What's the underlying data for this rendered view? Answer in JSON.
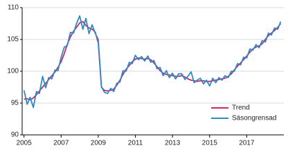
{
  "chart_data": {
    "type": "line",
    "x": [
      2005,
      2005.17,
      2005.33,
      2005.5,
      2005.67,
      2005.83,
      2006,
      2006.17,
      2006.33,
      2006.5,
      2006.67,
      2006.83,
      2007,
      2007.17,
      2007.33,
      2007.5,
      2007.67,
      2007.83,
      2008,
      2008.17,
      2008.33,
      2008.5,
      2008.67,
      2008.83,
      2009,
      2009.17,
      2009.33,
      2009.5,
      2009.67,
      2009.83,
      2010,
      2010.17,
      2010.33,
      2010.5,
      2010.67,
      2010.83,
      2011,
      2011.17,
      2011.33,
      2011.5,
      2011.67,
      2011.83,
      2012,
      2012.17,
      2012.33,
      2012.5,
      2012.67,
      2012.83,
      2013,
      2013.17,
      2013.33,
      2013.5,
      2013.67,
      2013.83,
      2014,
      2014.17,
      2014.33,
      2014.5,
      2014.67,
      2014.83,
      2015,
      2015.17,
      2015.33,
      2015.5,
      2015.67,
      2015.83,
      2016,
      2016.17,
      2016.33,
      2016.5,
      2016.67,
      2016.83,
      2017,
      2017.17,
      2017.33,
      2017.5,
      2017.67,
      2017.83,
      2018,
      2018.17,
      2018.33,
      2018.5,
      2018.67,
      2018.83
    ],
    "series": [
      {
        "name": "Trend",
        "color": "#d4206b",
        "values": [
          95.6,
          95.7,
          95.5,
          95.8,
          96.3,
          96.9,
          97.5,
          98.1,
          98.7,
          99.3,
          99.9,
          100.6,
          101.5,
          102.8,
          104.2,
          105.4,
          106.3,
          106.9,
          107.6,
          107.8,
          107.2,
          106.8,
          106.6,
          106.2,
          104.5,
          97.5,
          97.0,
          96.9,
          97.0,
          97.2,
          97.8,
          98.6,
          99.5,
          100.3,
          100.9,
          101.5,
          101.9,
          102.1,
          102.0,
          101.9,
          102.0,
          101.8,
          101.3,
          100.7,
          100.1,
          99.7,
          99.5,
          99.4,
          99.3,
          99.2,
          99.2,
          99.3,
          99.1,
          98.8,
          98.6,
          98.5,
          98.4,
          98.5,
          98.5,
          98.4,
          98.4,
          98.5,
          98.6,
          98.7,
          98.8,
          98.9,
          99.2,
          99.6,
          100.2,
          100.8,
          101.3,
          101.8,
          102.4,
          103.0,
          103.5,
          103.8,
          104.0,
          104.3,
          105.0,
          105.6,
          106.0,
          106.4,
          106.9,
          107.5
        ]
      },
      {
        "name": "Säsongrensad",
        "color": "#2a8bc6",
        "values": [
          97.0,
          94.8,
          95.9,
          94.3,
          96.8,
          96.5,
          99.2,
          97.4,
          99.0,
          98.8,
          100.2,
          100.1,
          102.2,
          103.8,
          104.0,
          106.1,
          106.0,
          107.5,
          108.7,
          106.6,
          108.3,
          105.9,
          107.3,
          106.0,
          105.0,
          97.6,
          96.7,
          96.5,
          97.3,
          96.8,
          98.1,
          98.3,
          100.1,
          100.0,
          101.4,
          101.2,
          102.5,
          101.8,
          102.3,
          101.6,
          102.4,
          101.4,
          101.7,
          100.4,
          100.6,
          99.3,
          100.1,
          99.0,
          99.7,
          98.8,
          99.6,
          99.6,
          98.7,
          99.2,
          99.9,
          98.2,
          98.6,
          98.9,
          98.0,
          98.6,
          97.7,
          98.9,
          98.2,
          99.0,
          98.6,
          99.3,
          99.0,
          100.0,
          100.0,
          101.2,
          101.0,
          102.2,
          102.1,
          103.5,
          103.3,
          104.2,
          103.7,
          104.8,
          104.6,
          106.0,
          105.7,
          106.8,
          106.6,
          107.8
        ]
      }
    ],
    "xlim": [
      2004.9,
      2019
    ],
    "xticks": [
      2005,
      2007,
      2009,
      2011,
      2013,
      2015,
      2017
    ],
    "ylim": [
      90,
      110
    ],
    "yticks": [
      90,
      95,
      100,
      105,
      110
    ],
    "grid": true,
    "legend": "lower right"
  }
}
